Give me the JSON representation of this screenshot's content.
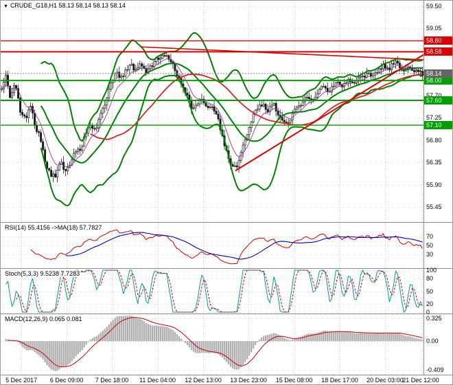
{
  "header": {
    "marker": "▼",
    "text": "CRUDE_G18,H1 58.13 58.14 58.13 58.14"
  },
  "colors": {
    "resistance": "#dd0000",
    "support": "#00a000",
    "bollinger": "#008000",
    "ma_red": "#dd2222",
    "ma_purple": "#993399",
    "candle": "#1a1a1a",
    "rsi_main": "#cc0000",
    "rsi_ma": "#0000bb",
    "stoch_main": "#009a9a",
    "stoch_signal": "#cc0000",
    "macd_hist": "#b0b0b0",
    "macd_signal": "#cc0000",
    "grid": "#cfcfcf",
    "divider": "#8c8c8c",
    "badge_current": "#666666"
  },
  "chart_data": {
    "type": "candlestick",
    "title": "CRUDE_G18,H1",
    "symbol": "CRUDE_G18",
    "timeframe": "H1",
    "ohlc": {
      "open": 58.13,
      "high": 58.14,
      "low": 58.13,
      "close": 58.14
    },
    "price_panel": {
      "y_ticks": [
        "59.50",
        "59.05",
        "58.60",
        "58.15",
        "57.70",
        "57.25",
        "56.80",
        "56.35",
        "55.90",
        "55.45"
      ],
      "y_range": [
        55.45,
        59.5
      ],
      "levels": [
        {
          "price": 58.8,
          "label": "58.80",
          "color": "#dd0000",
          "width": 1.4
        },
        {
          "price": 58.58,
          "label": "58.58",
          "color": "#dd0000",
          "width": 2
        },
        {
          "price": 58.0,
          "label": "58.00",
          "color": "#00a000",
          "width": 2
        },
        {
          "price": 57.6,
          "label": "57.60",
          "color": "#00a000",
          "width": 2
        },
        {
          "price": 57.1,
          "label": "57.10",
          "color": "#00a000",
          "width": 1.4
        }
      ],
      "current_price": {
        "price": 58.14,
        "label": "58.14"
      },
      "trendlines": [
        {
          "f1": 0.555,
          "p1": 56.18,
          "f2": 1.0,
          "p2": 58.52,
          "color": "#dd0000",
          "width": 2
        },
        {
          "f1": 0.33,
          "p1": 58.68,
          "f2": 1.0,
          "p2": 58.42,
          "color": "#dd0000",
          "width": 1.6
        }
      ],
      "bollinger": {
        "period": 20,
        "deviation": 2.3
      },
      "close_path": [
        [
          0.0,
          57.8
        ],
        [
          0.01,
          58.1
        ],
        [
          0.02,
          57.65
        ],
        [
          0.032,
          57.95
        ],
        [
          0.045,
          57.35
        ],
        [
          0.058,
          57.2
        ],
        [
          0.068,
          57.55
        ],
        [
          0.08,
          57.05
        ],
        [
          0.092,
          56.85
        ],
        [
          0.104,
          56.3
        ],
        [
          0.116,
          56.1
        ],
        [
          0.128,
          56.05
        ],
        [
          0.14,
          56.35
        ],
        [
          0.152,
          56.15
        ],
        [
          0.164,
          56.3
        ],
        [
          0.176,
          56.6
        ],
        [
          0.188,
          56.55
        ],
        [
          0.2,
          56.95
        ],
        [
          0.212,
          57.1
        ],
        [
          0.224,
          57.0
        ],
        [
          0.236,
          57.35
        ],
        [
          0.248,
          57.6
        ],
        [
          0.26,
          57.95
        ],
        [
          0.272,
          58.15
        ],
        [
          0.284,
          58.05
        ],
        [
          0.296,
          58.25
        ],
        [
          0.308,
          58.3
        ],
        [
          0.32,
          58.2
        ],
        [
          0.332,
          58.35
        ],
        [
          0.344,
          58.15
        ],
        [
          0.356,
          58.3
        ],
        [
          0.368,
          58.45
        ],
        [
          0.38,
          58.5
        ],
        [
          0.392,
          58.55
        ],
        [
          0.404,
          58.35
        ],
        [
          0.416,
          58.15
        ],
        [
          0.428,
          57.95
        ],
        [
          0.44,
          57.7
        ],
        [
          0.452,
          57.45
        ],
        [
          0.464,
          57.5
        ],
        [
          0.476,
          57.6
        ],
        [
          0.488,
          57.5
        ],
        [
          0.5,
          57.45
        ],
        [
          0.512,
          57.3
        ],
        [
          0.524,
          56.9
        ],
        [
          0.536,
          56.5
        ],
        [
          0.548,
          56.28
        ],
        [
          0.56,
          56.3
        ],
        [
          0.572,
          56.65
        ],
        [
          0.584,
          56.95
        ],
        [
          0.596,
          57.25
        ],
        [
          0.608,
          57.45
        ],
        [
          0.62,
          57.5
        ],
        [
          0.632,
          57.4
        ],
        [
          0.644,
          57.55
        ],
        [
          0.656,
          57.35
        ],
        [
          0.668,
          57.2
        ],
        [
          0.68,
          57.1
        ],
        [
          0.692,
          57.35
        ],
        [
          0.704,
          57.45
        ],
        [
          0.716,
          57.6
        ],
        [
          0.728,
          57.7
        ],
        [
          0.74,
          57.58
        ],
        [
          0.752,
          57.8
        ],
        [
          0.764,
          57.92
        ],
        [
          0.776,
          57.75
        ],
        [
          0.788,
          57.88
        ],
        [
          0.8,
          57.95
        ],
        [
          0.812,
          57.88
        ],
        [
          0.824,
          58.05
        ],
        [
          0.836,
          57.95
        ],
        [
          0.848,
          58.1
        ],
        [
          0.86,
          58.05
        ],
        [
          0.872,
          58.15
        ],
        [
          0.884,
          58.1
        ],
        [
          0.896,
          58.25
        ],
        [
          0.908,
          58.3
        ],
        [
          0.92,
          58.22
        ],
        [
          0.932,
          58.38
        ],
        [
          0.944,
          58.3
        ],
        [
          0.956,
          58.15
        ],
        [
          0.968,
          58.25
        ],
        [
          0.98,
          58.18
        ],
        [
          1.0,
          58.14
        ]
      ]
    },
    "rsi_panel": {
      "label": "RSI(14) 55.4156 ->MA(18) 57.7827",
      "levels": [
        70,
        50,
        30
      ],
      "level_labels": [
        "70",
        "50",
        "30"
      ],
      "last_rsi": 55.4156,
      "last_ma": 57.7827
    },
    "stoch_panel": {
      "label": "Stoch(5,3,3) 9.5238 7.7283",
      "levels": [
        100,
        80,
        50,
        20,
        0
      ],
      "level_labels": [
        "100",
        "80",
        "50",
        "20",
        "0"
      ],
      "last_k": 9.5238,
      "last_d": 7.7283
    },
    "macd_panel": {
      "label": "MACD(12,26,9) 0.065 0.081",
      "levels": [
        0.325,
        0,
        -0.409
      ],
      "level_labels": [
        "0.325",
        "0.00",
        "-0.409"
      ],
      "last_macd": 0.065,
      "last_signal": 0.081
    },
    "x_axis": {
      "labels": [
        "5 Dec 2017",
        "6 Dec 09:00",
        "7 Dec 18:00",
        "11 Dec 04:00",
        "12 Dec 13:00",
        "13 Dec 23:00",
        "15 Dec 08:00",
        "18 Dec 17:00",
        "20 Dec 03:00",
        "21 Dec 12:00"
      ],
      "fractions": [
        0.049,
        0.156,
        0.263,
        0.371,
        0.479,
        0.586,
        0.694,
        0.802,
        0.909,
        0.997
      ]
    }
  }
}
